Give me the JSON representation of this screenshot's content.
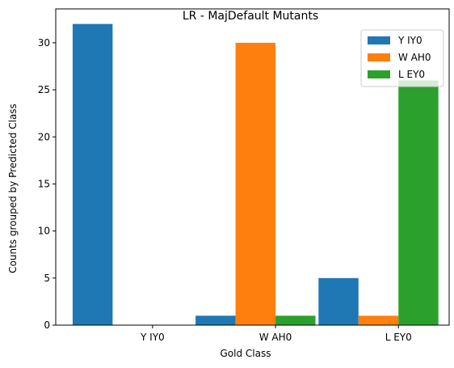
{
  "chart_data": {
    "type": "bar",
    "title": "LR - MajDefault Mutants",
    "xlabel": "Gold Class",
    "ylabel": "Counts grouped by Predicted Class",
    "categories": [
      "Y IY0",
      "W AH0",
      "L EY0"
    ],
    "series": [
      {
        "name": "Y IY0",
        "color": "#1f77b4",
        "values": [
          32,
          1,
          5
        ]
      },
      {
        "name": "W AH0",
        "color": "#ff7f0e",
        "values": [
          0,
          30,
          1
        ]
      },
      {
        "name": "L EY0",
        "color": "#2ca02c",
        "values": [
          0,
          1,
          26
        ]
      }
    ],
    "ylim": [
      0,
      33.6
    ],
    "yticks": [
      0,
      5,
      10,
      15,
      20,
      25,
      30
    ],
    "grid": false,
    "legend": "top-right"
  }
}
